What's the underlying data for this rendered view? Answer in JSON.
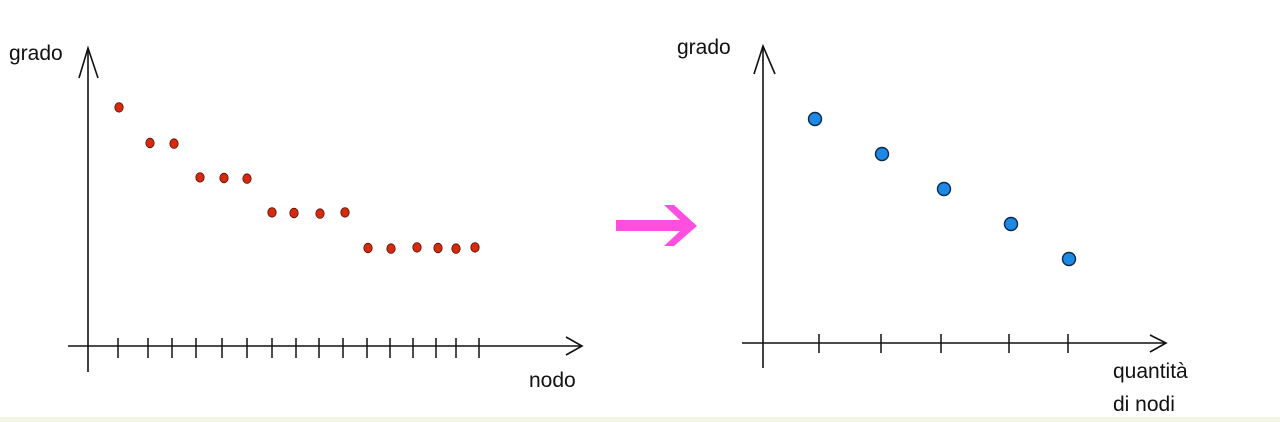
{
  "left_plot": {
    "y_label": "grado",
    "x_label": "nodo",
    "point_color": "#d42a10",
    "degrees": [
      8,
      7,
      7,
      6,
      6,
      6,
      5,
      5,
      5,
      5,
      4,
      4,
      4,
      4,
      4,
      4
    ]
  },
  "arrow": {
    "color": "#ff4fe0"
  },
  "right_plot": {
    "y_label": "grado",
    "x_label_line1": "quantità",
    "x_label_line2": "di nodi",
    "point_color": "#1e88e5",
    "degrees": [
      8,
      7,
      6,
      5,
      4
    ]
  }
}
